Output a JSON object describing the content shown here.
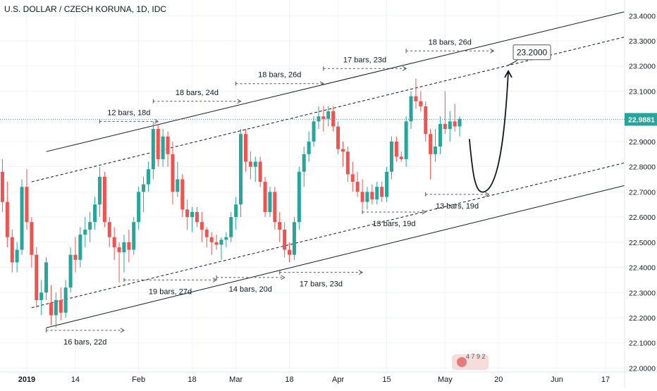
{
  "header": {
    "title": "U.S. DOLLAR / CZECH KORUNA, 1D, IDC"
  },
  "colors": {
    "up": "#26a69a",
    "down": "#ef5350",
    "price_line": "#26a69a",
    "price_tag_bg": "#26a69a",
    "axis_text": "#131722",
    "measure": "#555555"
  },
  "watermark": {
    "text": "4 7 9 2"
  },
  "chart_data": {
    "type": "candlestick",
    "title": "U.S. DOLLAR / CZECH KORUNA, 1D, IDC",
    "ylim": [
      21.99,
      23.44
    ],
    "y_ticks": [
      22.0,
      22.1,
      22.2,
      22.3,
      22.4,
      22.5,
      22.6,
      22.7,
      22.8,
      22.9,
      23.0,
      23.1,
      23.2,
      23.3,
      23.4
    ],
    "y_tick_labels": [
      "22.0000",
      "22.1000",
      "22.2000",
      "22.3000",
      "22.4000",
      "22.5000",
      "22.6000",
      "22.7000",
      "22.8000",
      "22.9000",
      "23.0000",
      "23.1000",
      "23.2000",
      "23.3000",
      "23.4000"
    ],
    "x_ticks": [
      {
        "label": "2019",
        "bar": 5
      },
      {
        "label": "14",
        "bar": 15
      },
      {
        "label": "Feb",
        "bar": 28
      },
      {
        "label": "18",
        "bar": 39
      },
      {
        "label": "Mar",
        "bar": 48
      },
      {
        "label": "18",
        "bar": 59
      },
      {
        "label": "Apr",
        "bar": 69
      },
      {
        "label": "15",
        "bar": 79
      },
      {
        "label": "May",
        "bar": 91
      },
      {
        "label": "20",
        "bar": 102
      },
      {
        "label": "Jun",
        "bar": 114
      },
      {
        "label": "17",
        "bar": 124
      }
    ],
    "current_price": 22.9881,
    "current_price_label": "22.9881",
    "target": {
      "value": 23.2,
      "label": "23.2000"
    },
    "candles": [
      {
        "o": 22.78,
        "h": 22.83,
        "l": 22.62,
        "c": 22.66
      },
      {
        "o": 22.66,
        "h": 22.74,
        "l": 22.48,
        "c": 22.52
      },
      {
        "o": 22.52,
        "h": 22.55,
        "l": 22.38,
        "c": 22.42
      },
      {
        "o": 22.42,
        "h": 22.5,
        "l": 22.38,
        "c": 22.47
      },
      {
        "o": 22.47,
        "h": 22.75,
        "l": 22.45,
        "c": 22.72
      },
      {
        "o": 22.72,
        "h": 22.79,
        "l": 22.55,
        "c": 22.58
      },
      {
        "o": 22.58,
        "h": 22.6,
        "l": 22.4,
        "c": 22.45
      },
      {
        "o": 22.45,
        "h": 22.48,
        "l": 22.24,
        "c": 22.27
      },
      {
        "o": 22.27,
        "h": 22.35,
        "l": 22.21,
        "c": 22.3
      },
      {
        "o": 22.3,
        "h": 22.44,
        "l": 22.27,
        "c": 22.42
      },
      {
        "o": 22.26,
        "h": 22.33,
        "l": 22.17,
        "c": 22.21
      },
      {
        "o": 22.21,
        "h": 22.3,
        "l": 22.16,
        "c": 22.27
      },
      {
        "o": 22.27,
        "h": 22.32,
        "l": 22.19,
        "c": 22.22
      },
      {
        "o": 22.22,
        "h": 22.35,
        "l": 22.2,
        "c": 22.32
      },
      {
        "o": 22.32,
        "h": 22.48,
        "l": 22.3,
        "c": 22.45
      },
      {
        "o": 22.45,
        "h": 22.52,
        "l": 22.38,
        "c": 22.43
      },
      {
        "o": 22.43,
        "h": 22.56,
        "l": 22.4,
        "c": 22.53
      },
      {
        "o": 22.53,
        "h": 22.6,
        "l": 22.48,
        "c": 22.55
      },
      {
        "o": 22.55,
        "h": 22.62,
        "l": 22.5,
        "c": 22.58
      },
      {
        "o": 22.58,
        "h": 22.68,
        "l": 22.55,
        "c": 22.65
      },
      {
        "o": 22.65,
        "h": 22.8,
        "l": 22.6,
        "c": 22.76
      },
      {
        "o": 22.76,
        "h": 22.78,
        "l": 22.56,
        "c": 22.58
      },
      {
        "o": 22.58,
        "h": 22.6,
        "l": 22.48,
        "c": 22.52
      },
      {
        "o": 22.52,
        "h": 22.56,
        "l": 22.43,
        "c": 22.48
      },
      {
        "o": 22.48,
        "h": 22.5,
        "l": 22.34,
        "c": 22.46
      },
      {
        "o": 22.46,
        "h": 22.53,
        "l": 22.38,
        "c": 22.5
      },
      {
        "o": 22.5,
        "h": 22.55,
        "l": 22.42,
        "c": 22.47
      },
      {
        "o": 22.47,
        "h": 22.6,
        "l": 22.45,
        "c": 22.58
      },
      {
        "o": 22.58,
        "h": 22.72,
        "l": 22.55,
        "c": 22.7
      },
      {
        "o": 22.7,
        "h": 22.76,
        "l": 22.62,
        "c": 22.73
      },
      {
        "o": 22.73,
        "h": 22.82,
        "l": 22.7,
        "c": 22.79
      },
      {
        "o": 22.79,
        "h": 22.98,
        "l": 22.75,
        "c": 22.95
      },
      {
        "o": 22.95,
        "h": 22.97,
        "l": 22.8,
        "c": 22.83
      },
      {
        "o": 22.83,
        "h": 22.95,
        "l": 22.8,
        "c": 22.92
      },
      {
        "o": 22.92,
        "h": 22.94,
        "l": 22.8,
        "c": 22.85
      },
      {
        "o": 22.85,
        "h": 22.9,
        "l": 22.65,
        "c": 22.7
      },
      {
        "o": 22.7,
        "h": 22.82,
        "l": 22.68,
        "c": 22.75
      },
      {
        "o": 22.75,
        "h": 22.77,
        "l": 22.6,
        "c": 22.63
      },
      {
        "o": 22.63,
        "h": 22.67,
        "l": 22.55,
        "c": 22.6
      },
      {
        "o": 22.6,
        "h": 22.64,
        "l": 22.54,
        "c": 22.62
      },
      {
        "o": 22.62,
        "h": 22.64,
        "l": 22.56,
        "c": 22.58
      },
      {
        "o": 22.58,
        "h": 22.62,
        "l": 22.5,
        "c": 22.55
      },
      {
        "o": 22.55,
        "h": 22.56,
        "l": 22.48,
        "c": 22.52
      },
      {
        "o": 22.52,
        "h": 22.54,
        "l": 22.45,
        "c": 22.5
      },
      {
        "o": 22.5,
        "h": 22.53,
        "l": 22.47,
        "c": 22.49
      },
      {
        "o": 22.49,
        "h": 22.52,
        "l": 22.43,
        "c": 22.51
      },
      {
        "o": 22.51,
        "h": 22.54,
        "l": 22.48,
        "c": 22.52
      },
      {
        "o": 22.52,
        "h": 22.62,
        "l": 22.5,
        "c": 22.6
      },
      {
        "o": 22.6,
        "h": 22.68,
        "l": 22.55,
        "c": 22.65
      },
      {
        "o": 22.65,
        "h": 22.95,
        "l": 22.6,
        "c": 22.93
      },
      {
        "o": 22.93,
        "h": 22.95,
        "l": 22.78,
        "c": 22.82
      },
      {
        "o": 22.82,
        "h": 22.86,
        "l": 22.75,
        "c": 22.8
      },
      {
        "o": 22.8,
        "h": 22.84,
        "l": 22.74,
        "c": 22.82
      },
      {
        "o": 22.82,
        "h": 22.84,
        "l": 22.72,
        "c": 22.74
      },
      {
        "o": 22.74,
        "h": 22.76,
        "l": 22.6,
        "c": 22.62
      },
      {
        "o": 22.62,
        "h": 22.72,
        "l": 22.6,
        "c": 22.7
      },
      {
        "o": 22.7,
        "h": 22.72,
        "l": 22.55,
        "c": 22.58
      },
      {
        "o": 22.58,
        "h": 22.62,
        "l": 22.5,
        "c": 22.55
      },
      {
        "o": 22.55,
        "h": 22.58,
        "l": 22.44,
        "c": 22.47
      },
      {
        "o": 22.47,
        "h": 22.5,
        "l": 22.42,
        "c": 22.45
      },
      {
        "o": 22.45,
        "h": 22.6,
        "l": 22.43,
        "c": 22.58
      },
      {
        "o": 22.58,
        "h": 22.8,
        "l": 22.55,
        "c": 22.78
      },
      {
        "o": 22.78,
        "h": 22.88,
        "l": 22.72,
        "c": 22.85
      },
      {
        "o": 22.85,
        "h": 22.94,
        "l": 22.82,
        "c": 22.9
      },
      {
        "o": 22.9,
        "h": 23.0,
        "l": 22.88,
        "c": 22.98
      },
      {
        "o": 22.98,
        "h": 23.04,
        "l": 22.95,
        "c": 23.0
      },
      {
        "o": 23.0,
        "h": 23.04,
        "l": 22.94,
        "c": 22.99
      },
      {
        "o": 22.99,
        "h": 23.04,
        "l": 22.96,
        "c": 23.02
      },
      {
        "o": 23.02,
        "h": 23.04,
        "l": 22.94,
        "c": 22.96
      },
      {
        "o": 22.96,
        "h": 22.98,
        "l": 22.85,
        "c": 22.87
      },
      {
        "o": 22.87,
        "h": 22.9,
        "l": 22.8,
        "c": 22.86
      },
      {
        "o": 22.86,
        "h": 22.88,
        "l": 22.74,
        "c": 22.77
      },
      {
        "o": 22.77,
        "h": 22.82,
        "l": 22.7,
        "c": 22.74
      },
      {
        "o": 22.74,
        "h": 22.78,
        "l": 22.68,
        "c": 22.7
      },
      {
        "o": 22.7,
        "h": 22.75,
        "l": 22.63,
        "c": 22.66
      },
      {
        "o": 22.66,
        "h": 22.72,
        "l": 22.63,
        "c": 22.7
      },
      {
        "o": 22.7,
        "h": 22.73,
        "l": 22.65,
        "c": 22.67
      },
      {
        "o": 22.67,
        "h": 22.74,
        "l": 22.65,
        "c": 22.72
      },
      {
        "o": 22.72,
        "h": 22.74,
        "l": 22.66,
        "c": 22.68
      },
      {
        "o": 22.68,
        "h": 22.8,
        "l": 22.66,
        "c": 22.78
      },
      {
        "o": 22.78,
        "h": 22.92,
        "l": 22.75,
        "c": 22.9
      },
      {
        "o": 22.9,
        "h": 22.92,
        "l": 22.82,
        "c": 22.84
      },
      {
        "o": 22.84,
        "h": 22.86,
        "l": 22.82,
        "c": 22.83
      },
      {
        "o": 22.83,
        "h": 23.0,
        "l": 22.8,
        "c": 22.98
      },
      {
        "o": 22.98,
        "h": 23.1,
        "l": 22.95,
        "c": 23.08
      },
      {
        "o": 23.08,
        "h": 23.15,
        "l": 23.03,
        "c": 23.06
      },
      {
        "o": 23.06,
        "h": 23.1,
        "l": 23.02,
        "c": 23.04
      },
      {
        "o": 23.04,
        "h": 23.06,
        "l": 22.9,
        "c": 22.93
      },
      {
        "o": 22.93,
        "h": 22.95,
        "l": 22.75,
        "c": 22.85
      },
      {
        "o": 22.85,
        "h": 22.95,
        "l": 22.82,
        "c": 22.88
      },
      {
        "o": 22.88,
        "h": 23.0,
        "l": 22.85,
        "c": 22.97
      },
      {
        "o": 22.97,
        "h": 23.1,
        "l": 22.93,
        "c": 22.95
      },
      {
        "o": 22.95,
        "h": 23.02,
        "l": 22.9,
        "c": 22.98
      },
      {
        "o": 22.98,
        "h": 23.05,
        "l": 22.94,
        "c": 22.96
      },
      {
        "o": 22.96,
        "h": 23.0,
        "l": 22.92,
        "c": 22.99
      }
    ],
    "channel_lines": [
      {
        "style": "solid",
        "from": {
          "bar": 9,
          "price": 22.16
        },
        "to": {
          "bar": 131,
          "price": 22.74
        }
      },
      {
        "style": "solid",
        "from": {
          "bar": 9,
          "price": 22.86
        },
        "to": {
          "bar": 131,
          "price": 23.43
        }
      },
      {
        "style": "dashed",
        "from": {
          "bar": 6,
          "price": 22.24
        },
        "to": {
          "bar": 131,
          "price": 22.83
        }
      },
      {
        "style": "dashed",
        "from": {
          "bar": 6,
          "price": 22.74
        },
        "to": {
          "bar": 131,
          "price": 23.33
        }
      }
    ],
    "projection": {
      "from": {
        "bar": 96,
        "price": 22.91
      },
      "bottom": {
        "bar": 99,
        "price": 22.7
      },
      "to": {
        "bar": 104,
        "price": 23.18
      }
    },
    "measurements": [
      {
        "label": "16 bars, 22d",
        "from": {
          "bar": 9,
          "price": 22.15
        },
        "to": {
          "bar": 25,
          "price": 22.15
        },
        "label_pos": "below"
      },
      {
        "label": "12 bars, 18d",
        "from": {
          "bar": 20,
          "price": 22.98
        },
        "to": {
          "bar": 32,
          "price": 22.98
        },
        "label_pos": "above"
      },
      {
        "label": "19 bars, 27d",
        "from": {
          "bar": 25,
          "price": 22.35
        },
        "to": {
          "bar": 44,
          "price": 22.35
        },
        "label_pos": "below"
      },
      {
        "label": "18 bars, 24d",
        "from": {
          "bar": 31,
          "price": 23.06
        },
        "to": {
          "bar": 49,
          "price": 23.06
        },
        "label_pos": "above"
      },
      {
        "label": "14 bars, 20d",
        "from": {
          "bar": 44,
          "price": 22.36
        },
        "to": {
          "bar": 58,
          "price": 22.36
        },
        "label_pos": "below"
      },
      {
        "label": "18 bars, 26d",
        "from": {
          "bar": 48,
          "price": 23.13
        },
        "to": {
          "bar": 66,
          "price": 23.13
        },
        "label_pos": "above"
      },
      {
        "label": "17 bars, 23d",
        "from": {
          "bar": 57,
          "price": 22.38
        },
        "to": {
          "bar": 74,
          "price": 22.38
        },
        "label_pos": "below"
      },
      {
        "label": "17 bars, 23d",
        "from": {
          "bar": 66,
          "price": 23.19
        },
        "to": {
          "bar": 83,
          "price": 23.19
        },
        "label_pos": "above"
      },
      {
        "label": "13 bars, 19d",
        "from": {
          "bar": 74,
          "price": 22.62
        },
        "to": {
          "bar": 87,
          "price": 22.62
        },
        "label_pos": "below"
      },
      {
        "label": "18 bars, 26d",
        "from": {
          "bar": 83,
          "price": 23.26
        },
        "to": {
          "bar": 101,
          "price": 23.26
        },
        "label_pos": "above"
      },
      {
        "label": "13 bars, 19d",
        "from": {
          "bar": 87,
          "price": 22.69
        },
        "to": {
          "bar": 100,
          "price": 22.69
        },
        "label_pos": "below"
      }
    ]
  }
}
